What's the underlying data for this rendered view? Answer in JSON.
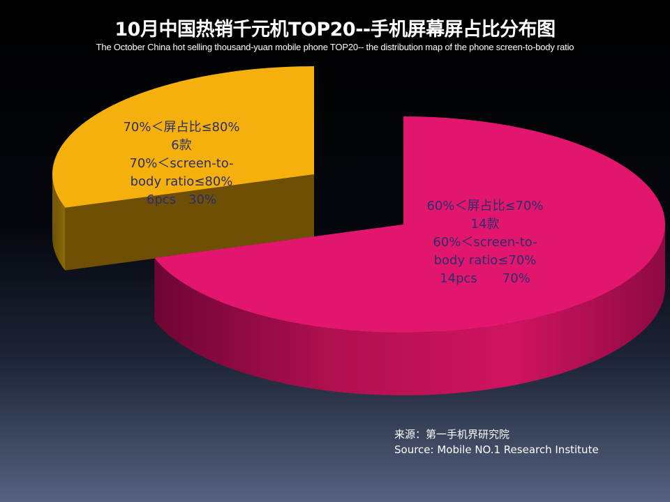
{
  "chart_data": {
    "type": "pie",
    "style": "3d-exploded",
    "title": "10月中国热销千元机TOP20--手机屏幕屏占比分布图",
    "subtitle": "The October China hot selling thousand-yuan mobile phone TOP20-- the distribution map of the phone screen-to-body ratio",
    "slices": [
      {
        "value": 70,
        "color": "#e3166e",
        "label_lines": [
          "60%＜屏占比≤70%",
          "14款",
          "60%＜screen-to-",
          "body ratio≤70%",
          "14pcs　　70%"
        ]
      },
      {
        "value": 30,
        "color": "#f5b00c",
        "label_lines": [
          "70%＜屏占比≤80%",
          "6款",
          "70%＜screen-to-",
          "body ratio≤80%",
          "6pcs　30%"
        ]
      }
    ],
    "label_colors": {
      "dark": "#2a2e6b"
    }
  },
  "source": {
    "line_cn": "来源：第一手机界研究院",
    "line_en": "Source: Mobile NO.1 Research Institute"
  }
}
